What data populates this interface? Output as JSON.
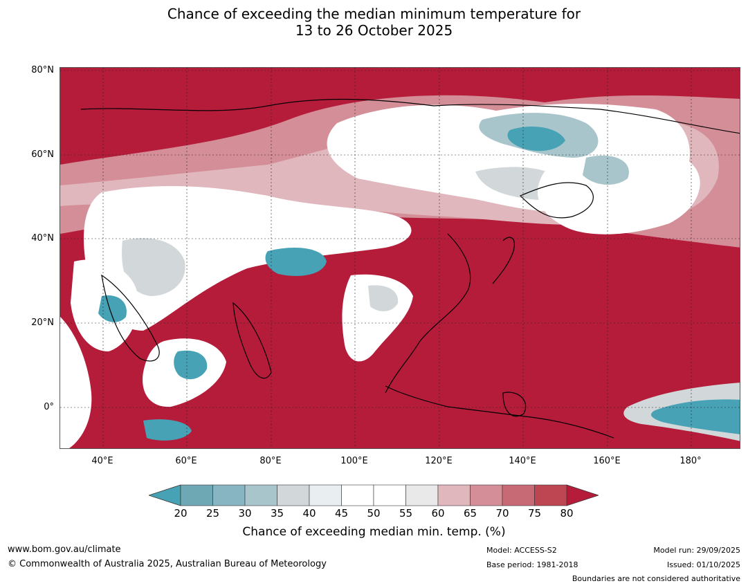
{
  "title_line1": "Chance of exceeding the median minimum temperature for",
  "title_line2": "13 to 26 October 2025",
  "map": {
    "lat_labels": [
      "80°N",
      "60°N",
      "40°N",
      "20°N",
      "0°"
    ],
    "lon_labels": [
      "40°E",
      "60°E",
      "80°E",
      "100°E",
      "120°E",
      "140°E",
      "160°E",
      "180°"
    ],
    "ocean_color": "#b41c3a"
  },
  "colorbar": {
    "title": "Chance of exceeding median min. temp. (%)",
    "ticks": [
      "20",
      "25",
      "30",
      "35",
      "40",
      "45",
      "50",
      "55",
      "60",
      "65",
      "70",
      "75",
      "80"
    ],
    "low_extend_color": "#46a2b4",
    "high_extend_color": "#b41c3a",
    "bins": [
      "#6fa8b5",
      "#87b6c2",
      "#a9c5cc",
      "#d2d8da",
      "#e9eef0",
      "#ffffff",
      "#ffffff",
      "#e9e9e9",
      "#e1b7be",
      "#d48e98",
      "#c86a76",
      "#be4653"
    ]
  },
  "footer": {
    "website": "www.bom.gov.au/climate",
    "copyright": "© Commonwealth of Australia 2025, Australian Bureau of Meteorology",
    "model": "Model: ACCESS-S2",
    "base_period": "Base period: 1981-2018",
    "model_run": "Model run: 29/09/2025",
    "issued": "Issued: 01/10/2025",
    "disclaimer": "Boundaries are not considered authoritative"
  }
}
